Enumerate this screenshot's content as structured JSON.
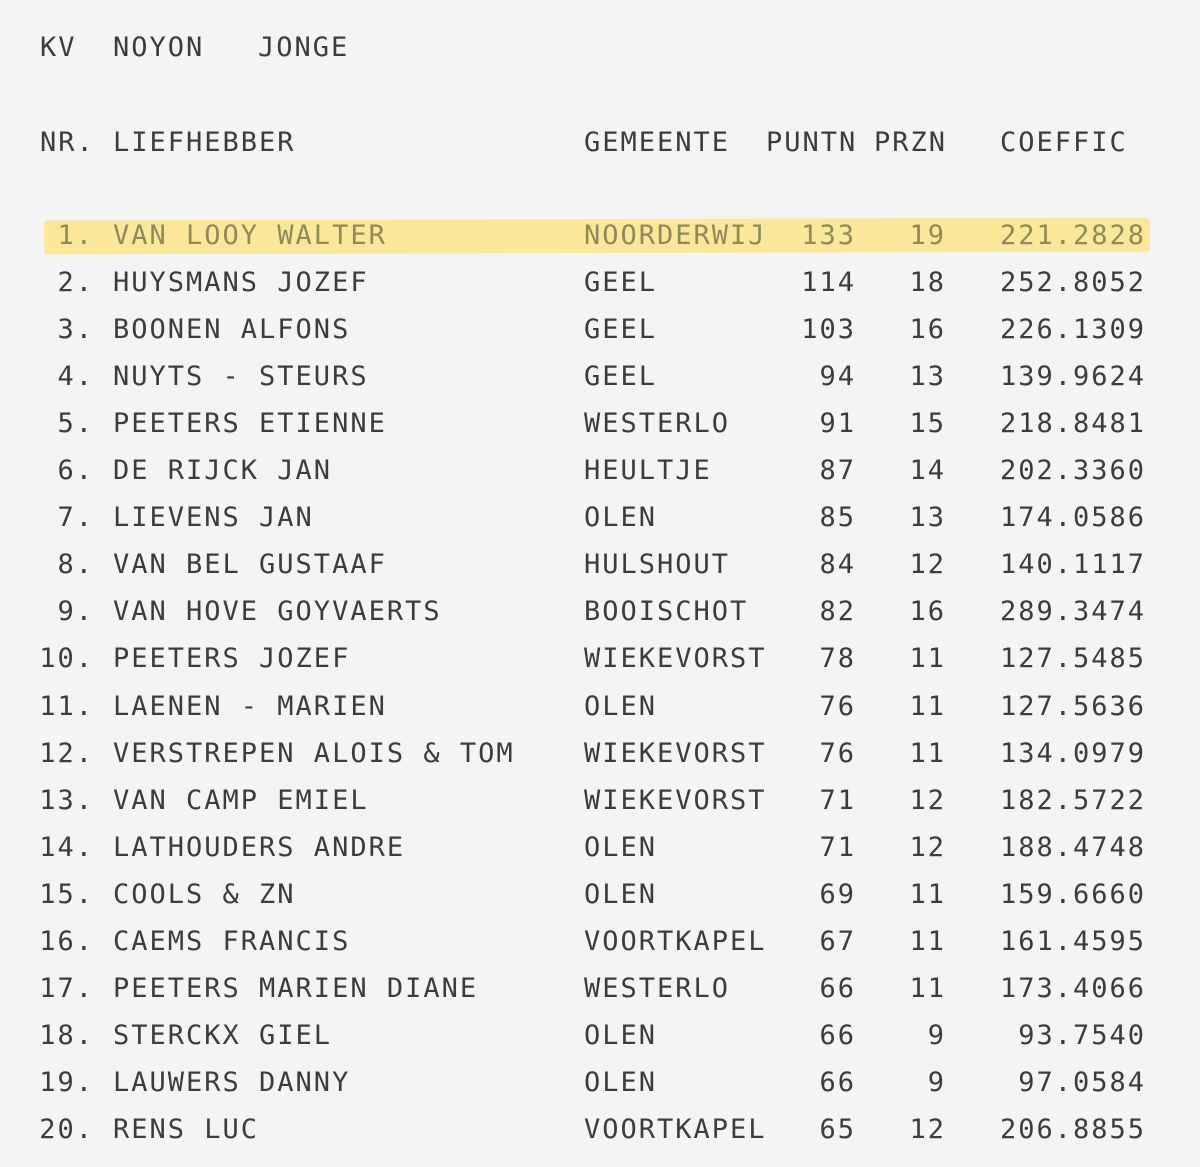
{
  "title": {
    "club": "KV",
    "race": "NOYON",
    "category": "JONGE"
  },
  "columns": {
    "nr": "NR.",
    "name": "LIEFHEBBER",
    "town": "GEMEENTE",
    "points": "PUNTN",
    "prizes": "PRZN",
    "coefficient": "COEFFIC"
  },
  "highlight_color": "#fbe79a",
  "rows": [
    {
      "nr": "1.",
      "name": "VAN LOOY WALTER",
      "town": "NOORDERWIJ",
      "points": "133",
      "prizes": "19",
      "coefficient": "221.2828",
      "highlighted": true
    },
    {
      "nr": "2.",
      "name": "HUYSMANS JOZEF",
      "town": "GEEL",
      "points": "114",
      "prizes": "18",
      "coefficient": "252.8052"
    },
    {
      "nr": "3.",
      "name": "BOONEN ALFONS",
      "town": "GEEL",
      "points": "103",
      "prizes": "16",
      "coefficient": "226.1309"
    },
    {
      "nr": "4.",
      "name": "NUYTS - STEURS",
      "town": "GEEL",
      "points": "94",
      "prizes": "13",
      "coefficient": "139.9624"
    },
    {
      "nr": "5.",
      "name": "PEETERS ETIENNE",
      "town": "WESTERLO",
      "points": "91",
      "prizes": "15",
      "coefficient": "218.8481"
    },
    {
      "nr": "6.",
      "name": "DE RIJCK JAN",
      "town": "HEULTJE",
      "points": "87",
      "prizes": "14",
      "coefficient": "202.3360"
    },
    {
      "nr": "7.",
      "name": "LIEVENS JAN",
      "town": "OLEN",
      "points": "85",
      "prizes": "13",
      "coefficient": "174.0586"
    },
    {
      "nr": "8.",
      "name": "VAN BEL GUSTAAF",
      "town": "HULSHOUT",
      "points": "84",
      "prizes": "12",
      "coefficient": "140.1117"
    },
    {
      "nr": "9.",
      "name": "VAN HOVE GOYVAERTS",
      "town": "BOOISCHOT",
      "points": "82",
      "prizes": "16",
      "coefficient": "289.3474"
    },
    {
      "nr": "10.",
      "name": "PEETERS JOZEF",
      "town": "WIEKEVORST",
      "points": "78",
      "prizes": "11",
      "coefficient": "127.5485"
    },
    {
      "nr": "11.",
      "name": "LAENEN - MARIEN",
      "town": "OLEN",
      "points": "76",
      "prizes": "11",
      "coefficient": "127.5636"
    },
    {
      "nr": "12.",
      "name": "VERSTREPEN ALOIS & TOM",
      "town": "WIEKEVORST",
      "points": "76",
      "prizes": "11",
      "coefficient": "134.0979"
    },
    {
      "nr": "13.",
      "name": "VAN CAMP EMIEL",
      "town": "WIEKEVORST",
      "points": "71",
      "prizes": "12",
      "coefficient": "182.5722"
    },
    {
      "nr": "14.",
      "name": "LATHOUDERS ANDRE",
      "town": "OLEN",
      "points": "71",
      "prizes": "12",
      "coefficient": "188.4748"
    },
    {
      "nr": "15.",
      "name": "COOLS & ZN",
      "town": "OLEN",
      "points": "69",
      "prizes": "11",
      "coefficient": "159.6660"
    },
    {
      "nr": "16.",
      "name": "CAEMS FRANCIS",
      "town": "VOORTKAPEL",
      "points": "67",
      "prizes": "11",
      "coefficient": "161.4595"
    },
    {
      "nr": "17.",
      "name": "PEETERS MARIEN DIANE",
      "town": "WESTERLO",
      "points": "66",
      "prizes": "11",
      "coefficient": "173.4066"
    },
    {
      "nr": "18.",
      "name": "STERCKX GIEL",
      "town": "OLEN",
      "points": "66",
      "prizes": "9",
      "coefficient": "93.7540"
    },
    {
      "nr": "19.",
      "name": "LAUWERS DANNY",
      "town": "OLEN",
      "points": "66",
      "prizes": "9",
      "coefficient": "97.0584"
    },
    {
      "nr": "20.",
      "name": "RENS LUC",
      "town": "VOORTKAPEL",
      "points": "65",
      "prizes": "12",
      "coefficient": "206.8855"
    }
  ]
}
